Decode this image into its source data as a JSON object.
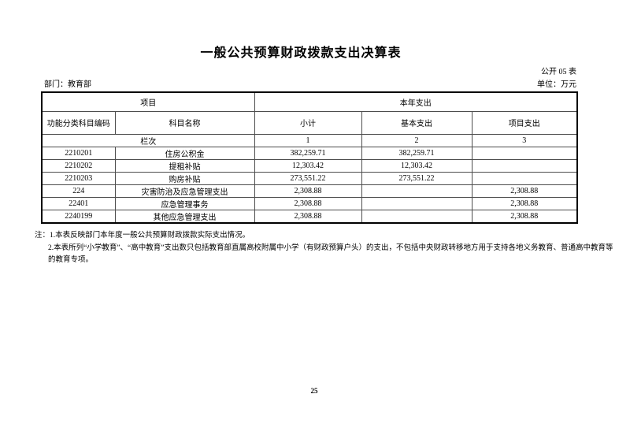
{
  "page": {
    "title": "一般公共预算财政拨款支出决算表",
    "table_code_label": "公开 05 表",
    "department_label": "部门：教育部",
    "unit_label": "单位：万元",
    "page_number": "25"
  },
  "colors": {
    "background": "#ffffff",
    "text": "#000000",
    "outer_border": "#000000",
    "inner_border": "#4d4d4d"
  },
  "table": {
    "header": {
      "group_left": "项目",
      "group_right": "本年支出",
      "col_code": "功能分类科目编码",
      "col_name": "科目名称",
      "col_subtotal": "小计",
      "col_basic": "基本支出",
      "col_project": "项目支出",
      "lanci_label": "栏次",
      "lanci_1": "1",
      "lanci_2": "2",
      "lanci_3": "3"
    },
    "rows": [
      {
        "code": "2210201",
        "name": "住房公积金",
        "subtotal": "382,259.71",
        "basic": "382,259.71",
        "project": ""
      },
      {
        "code": "2210202",
        "name": "提租补贴",
        "subtotal": "12,303.42",
        "basic": "12,303.42",
        "project": ""
      },
      {
        "code": "2210203",
        "name": "购房补贴",
        "subtotal": "273,551.22",
        "basic": "273,551.22",
        "project": ""
      },
      {
        "code": "224",
        "name": "灾害防治及应急管理支出",
        "subtotal": "2,308.88",
        "basic": "",
        "project": "2,308.88"
      },
      {
        "code": "22401",
        "name": "应急管理事务",
        "subtotal": "2,308.88",
        "basic": "",
        "project": "2,308.88"
      },
      {
        "code": "2240199",
        "name": "其他应急管理支出",
        "subtotal": "2,308.88",
        "basic": "",
        "project": "2,308.88"
      }
    ]
  },
  "notes": {
    "line1": "注：1.本表反映部门本年度一般公共预算财政拨款实际支出情况。",
    "line2": "2.本表所列“小学教育”、“高中教育”支出数只包括教育部直属高校附属中小学（有财政预算户头）的支出，不包括中央财政转移地方用于支持各地义务教育、普通高中教育等",
    "line3": "的教育专项。"
  }
}
